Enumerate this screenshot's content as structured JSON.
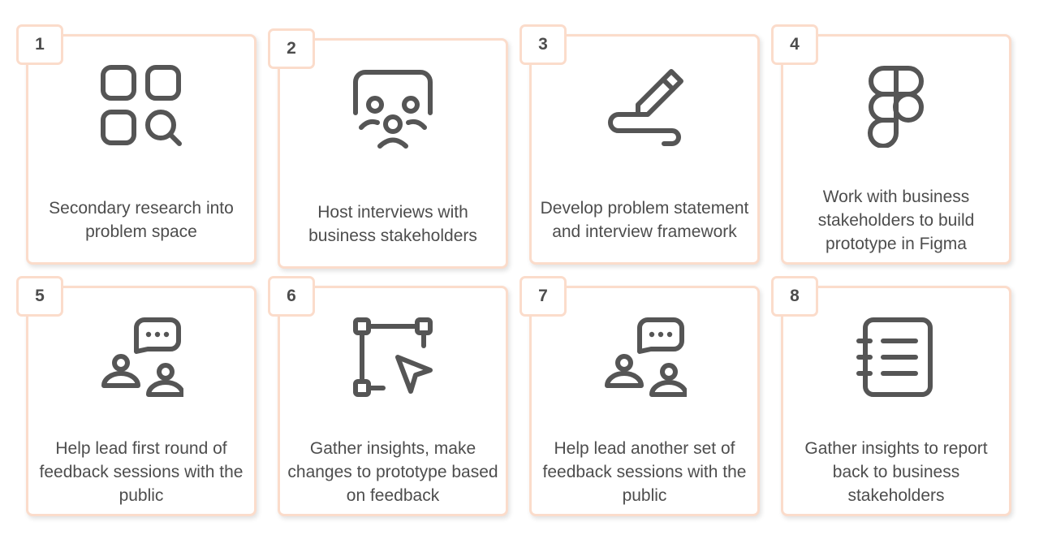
{
  "steps": [
    {
      "number": "1",
      "icon": "grid-search-icon",
      "text": "Secondary research into problem space"
    },
    {
      "number": "2",
      "icon": "presentation-audience-icon",
      "text": "Host interviews with business stakeholders"
    },
    {
      "number": "3",
      "icon": "pencil-scribble-icon",
      "text": "Develop problem statement and interview framework"
    },
    {
      "number": "4",
      "icon": "figma-icon",
      "text": "Work with business stakeholders to build prototype in Figma"
    },
    {
      "number": "5",
      "icon": "users-chat-icon",
      "text": "Help lead first round of feedback sessions with the public"
    },
    {
      "number": "6",
      "icon": "vector-cursor-icon",
      "text": "Gather insights, make changes to prototype based on feedback"
    },
    {
      "number": "7",
      "icon": "users-chat-icon",
      "text": "Help lead another set of feedback sessions with the public"
    },
    {
      "number": "8",
      "icon": "notebook-icon",
      "text": "Gather insights to report back to business stakeholders"
    }
  ],
  "colors": {
    "border": "#fbdccb",
    "text": "#4d4d4d",
    "icon": "#555555"
  }
}
